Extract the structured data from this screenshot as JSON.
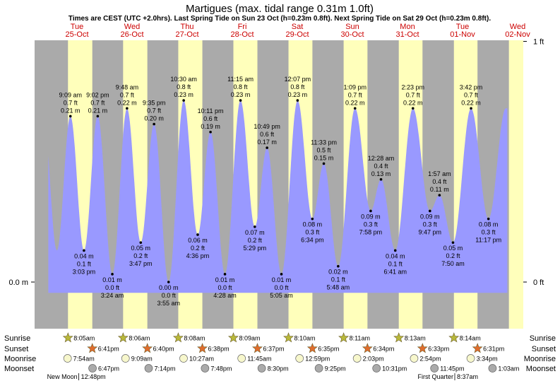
{
  "chart_data": {
    "type": "area",
    "title": "Martigues (max. tidal range 0.31m 1.0ft)",
    "subtitle": "Times are CEST (UTC +2.0hrs). Last Spring Tide on Sun 23 Oct (h=0.23m 0.8ft). Next Spring Tide on Sat 29 Oct (h=0.23m 0.8ft).",
    "xlim_hours": [
      0,
      216
    ],
    "ylim_m": [
      -0.02,
      0.31
    ],
    "left_axis": [
      {
        "label": "0.0 m",
        "value": 0
      }
    ],
    "right_axis": [
      {
        "label": "0 ft",
        "value": 0
      },
      {
        "label": "1 ft",
        "value": 0.3048
      }
    ],
    "days": [
      {
        "weekday": "Tue",
        "date": "25-Oct",
        "start": 0,
        "sunrise": 8.083,
        "sunset": 18.683
      },
      {
        "weekday": "Wed",
        "date": "26-Oct",
        "start": 24,
        "sunrise": 8.1,
        "sunset": 18.667
      },
      {
        "weekday": "Thu",
        "date": "27-Oct",
        "start": 48,
        "sunrise": 8.133,
        "sunset": 18.633
      },
      {
        "weekday": "Fri",
        "date": "28-Oct",
        "start": 72,
        "sunrise": 8.15,
        "sunset": 18.617
      },
      {
        "weekday": "Sat",
        "date": "29-Oct",
        "start": 96,
        "sunrise": 8.167,
        "sunset": 18.583
      },
      {
        "weekday": "Sun",
        "date": "30-Oct",
        "start": 120,
        "sunrise": 8.183,
        "sunset": 18.567
      },
      {
        "weekday": "Mon",
        "date": "31-Oct",
        "start": 144,
        "sunrise": 8.217,
        "sunset": 18.55
      },
      {
        "weekday": "Tue",
        "date": "01-Nov",
        "start": 168,
        "sunrise": 8.233,
        "sunset": 18.517
      },
      {
        "weekday": "Wed",
        "date": "02-Nov",
        "start": 192,
        "sunrise": 8.2,
        "sunset": 18.5
      }
    ],
    "curve_range_hours": [
      -0.5,
      199.5
    ],
    "tides": [
      {
        "type": "high",
        "hour": 9.15,
        "time": "9:09 am",
        "ft": "0.7 ft",
        "m": "0.21 m",
        "value": 0.21
      },
      {
        "type": "low",
        "hour": 15.05,
        "time": "3:03 pm",
        "ft": "0.1 ft",
        "m": "0.04 m",
        "value": 0.04
      },
      {
        "type": "high",
        "hour": 21.033,
        "time": "9:02 pm",
        "ft": "0.7 ft",
        "m": "0.21 m",
        "value": 0.21
      },
      {
        "type": "low",
        "hour": 27.4,
        "time": "3:24 am",
        "ft": "0.0 ft",
        "m": "0.01 m",
        "value": 0.01
      },
      {
        "type": "high",
        "hour": 33.8,
        "time": "9:48 am",
        "ft": "0.7 ft",
        "m": "0.22 m",
        "value": 0.22
      },
      {
        "type": "low",
        "hour": 39.783,
        "time": "3:47 pm",
        "ft": "0.2 ft",
        "m": "0.05 m",
        "value": 0.05
      },
      {
        "type": "high",
        "hour": 45.583,
        "time": "9:35 pm",
        "ft": "0.7 ft",
        "m": "0.20 m",
        "value": 0.2
      },
      {
        "type": "low",
        "hour": 51.917,
        "time": "3:55 am",
        "ft": "0.0 ft",
        "m": "0.00 m",
        "value": 0.0
      },
      {
        "type": "high",
        "hour": 58.5,
        "time": "10:30 am",
        "ft": "0.8 ft",
        "m": "0.23 m",
        "value": 0.23
      },
      {
        "type": "low",
        "hour": 64.6,
        "time": "4:36 pm",
        "ft": "0.2 ft",
        "m": "0.06 m",
        "value": 0.06
      },
      {
        "type": "high",
        "hour": 70.183,
        "time": "10:11 pm",
        "ft": "0.6 ft",
        "m": "0.19 m",
        "value": 0.19
      },
      {
        "type": "low",
        "hour": 76.467,
        "time": "4:28 am",
        "ft": "0.0 ft",
        "m": "0.01 m",
        "value": 0.01
      },
      {
        "type": "high",
        "hour": 83.25,
        "time": "11:15 am",
        "ft": "0.8 ft",
        "m": "0.23 m",
        "value": 0.23
      },
      {
        "type": "low",
        "hour": 89.483,
        "time": "5:29 pm",
        "ft": "0.2 ft",
        "m": "0.07 m",
        "value": 0.07
      },
      {
        "type": "high",
        "hour": 94.817,
        "time": "10:49 pm",
        "ft": "0.6 ft",
        "m": "0.17 m",
        "value": 0.17
      },
      {
        "type": "low",
        "hour": 101.083,
        "time": "5:05 am",
        "ft": "0.0 ft",
        "m": "0.01 m",
        "value": 0.01
      },
      {
        "type": "high",
        "hour": 108.117,
        "time": "12:07 pm",
        "ft": "0.8 ft",
        "m": "0.23 m",
        "value": 0.23
      },
      {
        "type": "low",
        "hour": 114.567,
        "time": "6:34 pm",
        "ft": "0.3 ft",
        "m": "0.08 m",
        "value": 0.08
      },
      {
        "type": "high",
        "hour": 119.55,
        "time": "11:33 pm",
        "ft": "0.5 ft",
        "m": "0.15 m",
        "value": 0.15
      },
      {
        "type": "low",
        "hour": 125.8,
        "time": "5:48 am",
        "ft": "0.1 ft",
        "m": "0.02 m",
        "value": 0.02
      },
      {
        "type": "high",
        "hour": 133.15,
        "time": "1:09 pm",
        "ft": "0.7 ft",
        "m": "0.22 m",
        "value": 0.22
      },
      {
        "type": "low",
        "hour": 139.967,
        "time": "7:58 pm",
        "ft": "0.3 ft",
        "m": "0.09 m",
        "value": 0.09
      },
      {
        "type": "high",
        "hour": 144.467,
        "time": "12:28 am",
        "ft": "0.4 ft",
        "m": "0.13 m",
        "value": 0.13
      },
      {
        "type": "low",
        "hour": 150.683,
        "time": "6:41 am",
        "ft": "0.1 ft",
        "m": "0.04 m",
        "value": 0.04
      },
      {
        "type": "high",
        "hour": 158.383,
        "time": "2:23 pm",
        "ft": "0.7 ft",
        "m": "0.22 m",
        "value": 0.22
      },
      {
        "type": "low",
        "hour": 165.783,
        "time": "9:47 pm",
        "ft": "0.3 ft",
        "m": "0.09 m",
        "value": 0.09
      },
      {
        "type": "high",
        "hour": 169.95,
        "time": "1:57 am",
        "ft": "0.4 ft",
        "m": "0.11 m",
        "value": 0.11
      },
      {
        "type": "low",
        "hour": 175.833,
        "time": "7:50 am",
        "ft": "0.2 ft",
        "m": "0.05 m",
        "value": 0.05
      },
      {
        "type": "high",
        "hour": 183.7,
        "time": "3:42 pm",
        "ft": "0.7 ft",
        "m": "0.22 m",
        "value": 0.22
      },
      {
        "type": "low",
        "hour": 191.283,
        "time": "11:17 pm",
        "ft": "0.3 ft",
        "m": "0.08 m",
        "value": 0.08
      }
    ],
    "row_labels": [
      "Sunrise",
      "Sunset",
      "Moonrise",
      "Moonset"
    ],
    "sunrise_events": [
      {
        "hour": 8.083,
        "time": "8:05am"
      },
      {
        "hour": 32.1,
        "time": "8:06am"
      },
      {
        "hour": 56.133,
        "time": "8:08am"
      },
      {
        "hour": 80.15,
        "time": "8:09am"
      },
      {
        "hour": 104.167,
        "time": "8:10am"
      },
      {
        "hour": 128.183,
        "time": "8:11am"
      },
      {
        "hour": 152.217,
        "time": "8:13am"
      },
      {
        "hour": 176.233,
        "time": "8:14am"
      }
    ],
    "sunset_events": [
      {
        "hour": 18.683,
        "time": "6:41pm"
      },
      {
        "hour": 42.667,
        "time": "6:40pm"
      },
      {
        "hour": 66.633,
        "time": "6:38pm"
      },
      {
        "hour": 90.617,
        "time": "6:37pm"
      },
      {
        "hour": 114.583,
        "time": "6:35pm"
      },
      {
        "hour": 138.567,
        "time": "6:34pm"
      },
      {
        "hour": 162.55,
        "time": "6:33pm"
      },
      {
        "hour": 186.517,
        "time": "6:31pm"
      }
    ],
    "moonrise_events": [
      {
        "hour": 7.9,
        "time": "7:54am"
      },
      {
        "hour": 33.15,
        "time": "9:09am"
      },
      {
        "hour": 58.45,
        "time": "10:27am"
      },
      {
        "hour": 83.75,
        "time": "11:45am"
      },
      {
        "hour": 108.983,
        "time": "12:59pm"
      },
      {
        "hour": 134.05,
        "time": "2:03pm"
      },
      {
        "hour": 158.9,
        "time": "2:54pm"
      },
      {
        "hour": 183.567,
        "time": "3:34pm"
      }
    ],
    "moonset_events": [
      {
        "hour": 18.783,
        "time": "6:47pm"
      },
      {
        "hour": 43.233,
        "time": "7:14pm"
      },
      {
        "hour": 67.8,
        "time": "7:48pm"
      },
      {
        "hour": 92.5,
        "time": "8:30pm"
      },
      {
        "hour": 117.417,
        "time": "9:25pm"
      },
      {
        "hour": 142.517,
        "time": "10:31pm"
      },
      {
        "hour": 167.75,
        "time": "11:45pm"
      },
      {
        "hour": 193.05,
        "time": "1:03am"
      }
    ],
    "moon_phases": [
      {
        "name": "New Moon",
        "time": "12:48pm",
        "hour": 12.8
      },
      {
        "name": "First Quarter",
        "time": "8:37am",
        "hour": 176.617
      }
    ]
  },
  "colors": {
    "night": "#aaaaaa",
    "day": "#ffffbb",
    "water": "#9999ff",
    "sunrise_star": "#b8b83a",
    "sunset_star": "#e06d2d",
    "moon_light": "#f7f7cc",
    "moon_dark": "#aaaaaa",
    "day_label": "#cc0000"
  }
}
